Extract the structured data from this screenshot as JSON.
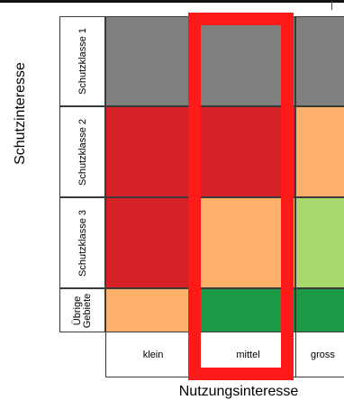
{
  "matrix": {
    "y_axis_title": "Schutzinteresse",
    "x_axis_title": "Nutzungsinteresse",
    "rows": [
      {
        "label": "Schutzklasse 1",
        "colors": [
          "grey",
          "grey",
          "grey"
        ]
      },
      {
        "label": "Schutzklasse 2",
        "colors": [
          "red",
          "red",
          "orange"
        ]
      },
      {
        "label": "Schutzklasse 3",
        "colors": [
          "red",
          "orange",
          "lightgreen"
        ]
      },
      {
        "label": "Übrige Gebiete",
        "colors": [
          "orange",
          "darkgreen",
          "darkgreen"
        ]
      }
    ],
    "columns": [
      "klein",
      "mittel",
      "gross"
    ],
    "highlight_column": "mittel",
    "colors": {
      "grey": "#808080",
      "red": "#d62128",
      "orange": "#fcb06a",
      "lightgreen": "#a9d86e",
      "darkgreen": "#1b9a45",
      "highlight": "#ff1a1a"
    }
  }
}
